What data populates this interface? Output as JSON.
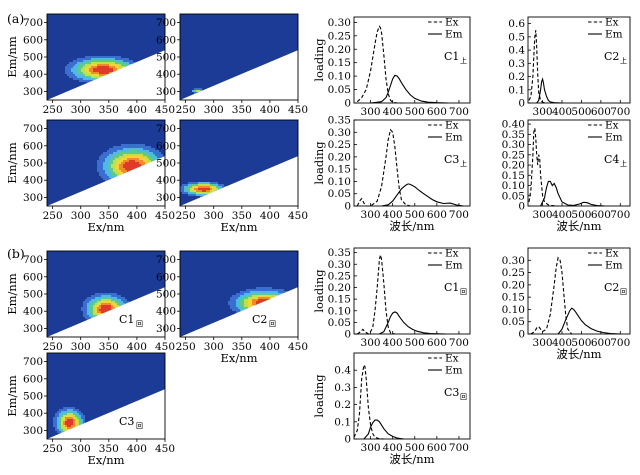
{
  "figure": {
    "panel_labels": [
      "(a)",
      "(b)"
    ],
    "eem_xlabel": "Ex/nm",
    "eem_ylabel": "Em/nm",
    "loading_xlabel": "波长/nm",
    "loading_ylabel": "loading",
    "legend_ex": "Ex",
    "legend_em": "Em"
  },
  "eem_panels": [
    {
      "label_main": "",
      "label_sub": "",
      "show_xlabel": false,
      "show_ylabel": true,
      "peaks": [
        {
          "ex": 340,
          "em": 425,
          "a": 48,
          "b": 58,
          "h": 1.0
        }
      ]
    },
    {
      "label_main": "",
      "label_sub": "",
      "show_xlabel": false,
      "show_ylabel": false,
      "peaks": [
        {
          "ex": 272,
          "em": 302,
          "a": 10,
          "b": 12,
          "h": 0.55
        }
      ]
    },
    {
      "label_main": "",
      "label_sub": "",
      "show_xlabel": true,
      "show_ylabel": true,
      "peaks": [
        {
          "ex": 392,
          "em": 480,
          "a": 44,
          "b": 92,
          "h": 1.0
        }
      ]
    },
    {
      "label_main": "",
      "label_sub": "",
      "show_xlabel": true,
      "show_ylabel": false,
      "peaks": [
        {
          "ex": 282,
          "em": 348,
          "a": 30,
          "b": 32,
          "h": 1.0
        }
      ]
    },
    {
      "label_main": "C1",
      "label_sub": "回",
      "show_xlabel": false,
      "show_ylabel": true,
      "peaks": [
        {
          "ex": 345,
          "em": 412,
          "a": 30,
          "b": 68,
          "h": 1.0
        }
      ]
    },
    {
      "label_main": "C2",
      "label_sub": "回",
      "show_xlabel": true,
      "show_ylabel": false,
      "peaks": [
        {
          "ex": 390,
          "em": 448,
          "a": 44,
          "b": 62,
          "h": 1.0
        }
      ]
    },
    {
      "label_main": "C3",
      "label_sub": "回",
      "show_xlabel": true,
      "show_ylabel": true,
      "peaks": [
        {
          "ex": 280,
          "em": 345,
          "a": 20,
          "b": 64,
          "h": 1.0
        }
      ]
    }
  ],
  "eem_axes": {
    "xticks": [
      250,
      300,
      350,
      400,
      450
    ],
    "yticks": [
      300,
      400,
      500,
      600,
      700
    ],
    "xlim": [
      240,
      450
    ],
    "ylim": [
      250,
      750
    ]
  },
  "chart_data": [
    {
      "type": "line",
      "panel": "C1上",
      "label_main": "C1",
      "label_sub": "上",
      "show_xlabel": false,
      "show_ylabel": true,
      "xlim": [
        225,
        750
      ],
      "ylim": [
        0,
        0.32
      ],
      "xticks": [
        300,
        400,
        500,
        600,
        700
      ],
      "yticks": [
        0,
        0.05,
        0.1,
        0.15,
        0.2,
        0.25,
        0.3
      ],
      "ytick_labels": [
        "0",
        "0.05",
        "0.10",
        "0.15",
        "0.20",
        "0.25",
        "0.30"
      ],
      "series": [
        {
          "name": "Ex",
          "x": [
            240,
            260,
            280,
            300,
            310,
            320,
            330,
            340,
            345,
            350,
            360,
            370,
            380,
            390,
            400,
            420,
            450
          ],
          "y": [
            0.005,
            0.02,
            0.05,
            0.12,
            0.17,
            0.22,
            0.265,
            0.285,
            0.28,
            0.26,
            0.18,
            0.09,
            0.035,
            0.01,
            0.003,
            0.0,
            0.0
          ]
        },
        {
          "name": "Em",
          "x": [
            300,
            350,
            370,
            380,
            390,
            400,
            410,
            420,
            430,
            440,
            460,
            480,
            500,
            530,
            560,
            600,
            650
          ],
          "y": [
            0.0,
            0.005,
            0.02,
            0.04,
            0.065,
            0.09,
            0.103,
            0.1,
            0.09,
            0.075,
            0.05,
            0.03,
            0.017,
            0.007,
            0.003,
            0.001,
            0.0
          ]
        }
      ]
    },
    {
      "type": "line",
      "panel": "C2上",
      "label_main": "C2",
      "label_sub": "上",
      "show_xlabel": false,
      "show_ylabel": false,
      "xlim": [
        225,
        750
      ],
      "ylim": [
        0,
        0.65
      ],
      "xticks": [
        300,
        400,
        500,
        600,
        700
      ],
      "yticks": [
        0,
        0.1,
        0.2,
        0.3,
        0.4,
        0.5,
        0.6
      ],
      "ytick_labels": [
        "0",
        "0.1",
        "0.2",
        "0.3",
        "0.4",
        "0.5",
        "0.6"
      ],
      "series": [
        {
          "name": "Ex",
          "x": [
            230,
            240,
            250,
            255,
            260,
            265,
            270,
            275,
            280,
            290,
            300,
            320
          ],
          "y": [
            0.02,
            0.05,
            0.2,
            0.35,
            0.5,
            0.55,
            0.42,
            0.22,
            0.08,
            0.02,
            0.005,
            0.0
          ]
        },
        {
          "name": "Em",
          "x": [
            270,
            280,
            290,
            295,
            300,
            305,
            310,
            320,
            330,
            340,
            360,
            400
          ],
          "y": [
            0.0,
            0.02,
            0.1,
            0.16,
            0.18,
            0.15,
            0.1,
            0.05,
            0.02,
            0.008,
            0.002,
            0.0
          ]
        }
      ]
    },
    {
      "type": "line",
      "panel": "C3上",
      "label_main": "C3",
      "label_sub": "上",
      "show_xlabel": true,
      "show_ylabel": true,
      "xlim": [
        225,
        750
      ],
      "ylim": [
        0,
        0.35
      ],
      "xticks": [
        300,
        400,
        500,
        600,
        700
      ],
      "yticks": [
        0,
        0.05,
        0.1,
        0.15,
        0.2,
        0.25,
        0.3,
        0.35
      ],
      "ytick_labels": [
        "0",
        "0.05",
        "0.10",
        "0.15",
        "0.20",
        "0.25",
        "0.30",
        "0.35"
      ],
      "series": [
        {
          "name": "Ex",
          "x": [
            240,
            250,
            260,
            270,
            280,
            300,
            330,
            350,
            370,
            380,
            390,
            400,
            410,
            420,
            430,
            440,
            460,
            480
          ],
          "y": [
            0.0,
            0.02,
            0.03,
            0.012,
            0.0,
            0.0,
            0.02,
            0.08,
            0.2,
            0.27,
            0.31,
            0.3,
            0.24,
            0.15,
            0.07,
            0.025,
            0.005,
            0.0
          ]
        },
        {
          "name": "Em",
          "x": [
            350,
            380,
            400,
            420,
            440,
            460,
            470,
            480,
            500,
            520,
            540,
            560,
            580,
            600,
            630,
            660,
            690,
            720
          ],
          "y": [
            0.0,
            0.005,
            0.02,
            0.045,
            0.07,
            0.085,
            0.09,
            0.088,
            0.078,
            0.063,
            0.05,
            0.038,
            0.026,
            0.017,
            0.01,
            0.012,
            0.004,
            0.0
          ]
        }
      ]
    },
    {
      "type": "line",
      "panel": "C4上",
      "label_main": "C4",
      "label_sub": "上",
      "show_xlabel": true,
      "show_ylabel": false,
      "xlim": [
        225,
        750
      ],
      "ylim": [
        0,
        0.42
      ],
      "xticks": [
        300,
        400,
        500,
        600,
        700
      ],
      "yticks": [
        0,
        0.05,
        0.1,
        0.15,
        0.2,
        0.25,
        0.3,
        0.35,
        0.4
      ],
      "ytick_labels": [
        "0",
        "0.05",
        "0.10",
        "0.15",
        "0.20",
        "0.25",
        "0.30",
        "0.35",
        "0.40"
      ],
      "series": [
        {
          "name": "Ex",
          "x": [
            230,
            240,
            250,
            255,
            260,
            265,
            270,
            275,
            280,
            285,
            290,
            300,
            310,
            330,
            360,
            380
          ],
          "y": [
            0.02,
            0.08,
            0.25,
            0.36,
            0.38,
            0.33,
            0.25,
            0.2,
            0.25,
            0.23,
            0.15,
            0.05,
            0.02,
            0.005,
            0.001,
            0.0
          ]
        },
        {
          "name": "Em",
          "x": [
            290,
            310,
            320,
            330,
            340,
            350,
            360,
            370,
            380,
            400,
            430,
            460,
            490,
            510,
            530,
            550,
            580,
            620
          ],
          "y": [
            0.0,
            0.04,
            0.09,
            0.12,
            0.12,
            0.1,
            0.11,
            0.09,
            0.06,
            0.02,
            0.005,
            0.003,
            0.01,
            0.018,
            0.016,
            0.008,
            0.002,
            0.0
          ]
        }
      ]
    },
    {
      "type": "line",
      "panel": "C1回",
      "label_main": "C1",
      "label_sub": "回",
      "show_xlabel": false,
      "show_ylabel": true,
      "xlim": [
        225,
        750
      ],
      "ylim": [
        0,
        0.37
      ],
      "xticks": [
        300,
        400,
        500,
        600,
        700
      ],
      "yticks": [
        0,
        0.05,
        0.1,
        0.15,
        0.2,
        0.25,
        0.3,
        0.35
      ],
      "ytick_labels": [
        "0",
        "0.05",
        "0.10",
        "0.15",
        "0.20",
        "0.25",
        "0.30",
        "0.35"
      ],
      "series": [
        {
          "name": "Ex",
          "x": [
            240,
            255,
            265,
            275,
            290,
            300,
            310,
            320,
            330,
            340,
            345,
            350,
            360,
            370,
            380,
            390,
            410
          ],
          "y": [
            0.0,
            0.01,
            0.02,
            0.01,
            0.0,
            0.01,
            0.03,
            0.1,
            0.2,
            0.32,
            0.34,
            0.32,
            0.22,
            0.1,
            0.03,
            0.005,
            0.0
          ]
        },
        {
          "name": "Em",
          "x": [
            340,
            360,
            380,
            390,
            400,
            410,
            420,
            430,
            450,
            470,
            490,
            510,
            540,
            570,
            600,
            640
          ],
          "y": [
            0.0,
            0.01,
            0.05,
            0.075,
            0.09,
            0.095,
            0.09,
            0.075,
            0.05,
            0.032,
            0.02,
            0.012,
            0.005,
            0.002,
            0.001,
            0.0
          ]
        }
      ]
    },
    {
      "type": "line",
      "panel": "C2回",
      "label_main": "C2",
      "label_sub": "回",
      "show_xlabel": true,
      "show_ylabel": false,
      "xlim": [
        225,
        750
      ],
      "ylim": [
        0,
        0.35
      ],
      "xticks": [
        300,
        400,
        500,
        600,
        700
      ],
      "yticks": [
        0,
        0.05,
        0.1,
        0.15,
        0.2,
        0.25,
        0.3
      ],
      "ytick_labels": [
        "0",
        "0.05",
        "0.10",
        "0.15",
        "0.20",
        "0.25",
        "0.30"
      ],
      "series": [
        {
          "name": "Ex",
          "x": [
            240,
            260,
            270,
            280,
            290,
            300,
            320,
            340,
            360,
            370,
            380,
            390,
            400,
            410,
            420,
            430,
            450
          ],
          "y": [
            0.0,
            0.01,
            0.025,
            0.03,
            0.02,
            0.01,
            0.02,
            0.08,
            0.2,
            0.27,
            0.31,
            0.3,
            0.25,
            0.16,
            0.07,
            0.02,
            0.0
          ]
        },
        {
          "name": "Em",
          "x": [
            380,
            400,
            420,
            440,
            450,
            460,
            470,
            480,
            500,
            520,
            550,
            580,
            610,
            650,
            700
          ],
          "y": [
            0.0,
            0.02,
            0.06,
            0.095,
            0.105,
            0.1,
            0.09,
            0.078,
            0.055,
            0.038,
            0.022,
            0.012,
            0.006,
            0.002,
            0.0
          ]
        }
      ]
    },
    {
      "type": "line",
      "panel": "C3回",
      "label_main": "C3",
      "label_sub": "回",
      "show_xlabel": true,
      "show_ylabel": true,
      "xlim": [
        225,
        750
      ],
      "ylim": [
        0,
        0.5
      ],
      "xticks": [
        300,
        400,
        500,
        600,
        700
      ],
      "yticks": [
        0,
        0.1,
        0.2,
        0.3,
        0.4
      ],
      "ytick_labels": [
        "0",
        "0.1",
        "0.2",
        "0.3",
        "0.4"
      ],
      "series": [
        {
          "name": "Ex",
          "x": [
            225,
            240,
            250,
            260,
            270,
            275,
            280,
            290,
            300,
            310,
            320,
            340,
            360
          ],
          "y": [
            0.01,
            0.05,
            0.15,
            0.35,
            0.43,
            0.42,
            0.35,
            0.18,
            0.08,
            0.03,
            0.01,
            0.002,
            0.0
          ]
        },
        {
          "name": "Em",
          "x": [
            270,
            290,
            300,
            310,
            320,
            330,
            340,
            350,
            360,
            380,
            400,
            420,
            450
          ],
          "y": [
            0.0,
            0.03,
            0.07,
            0.095,
            0.11,
            0.11,
            0.1,
            0.08,
            0.06,
            0.03,
            0.015,
            0.005,
            0.0
          ]
        }
      ]
    }
  ]
}
